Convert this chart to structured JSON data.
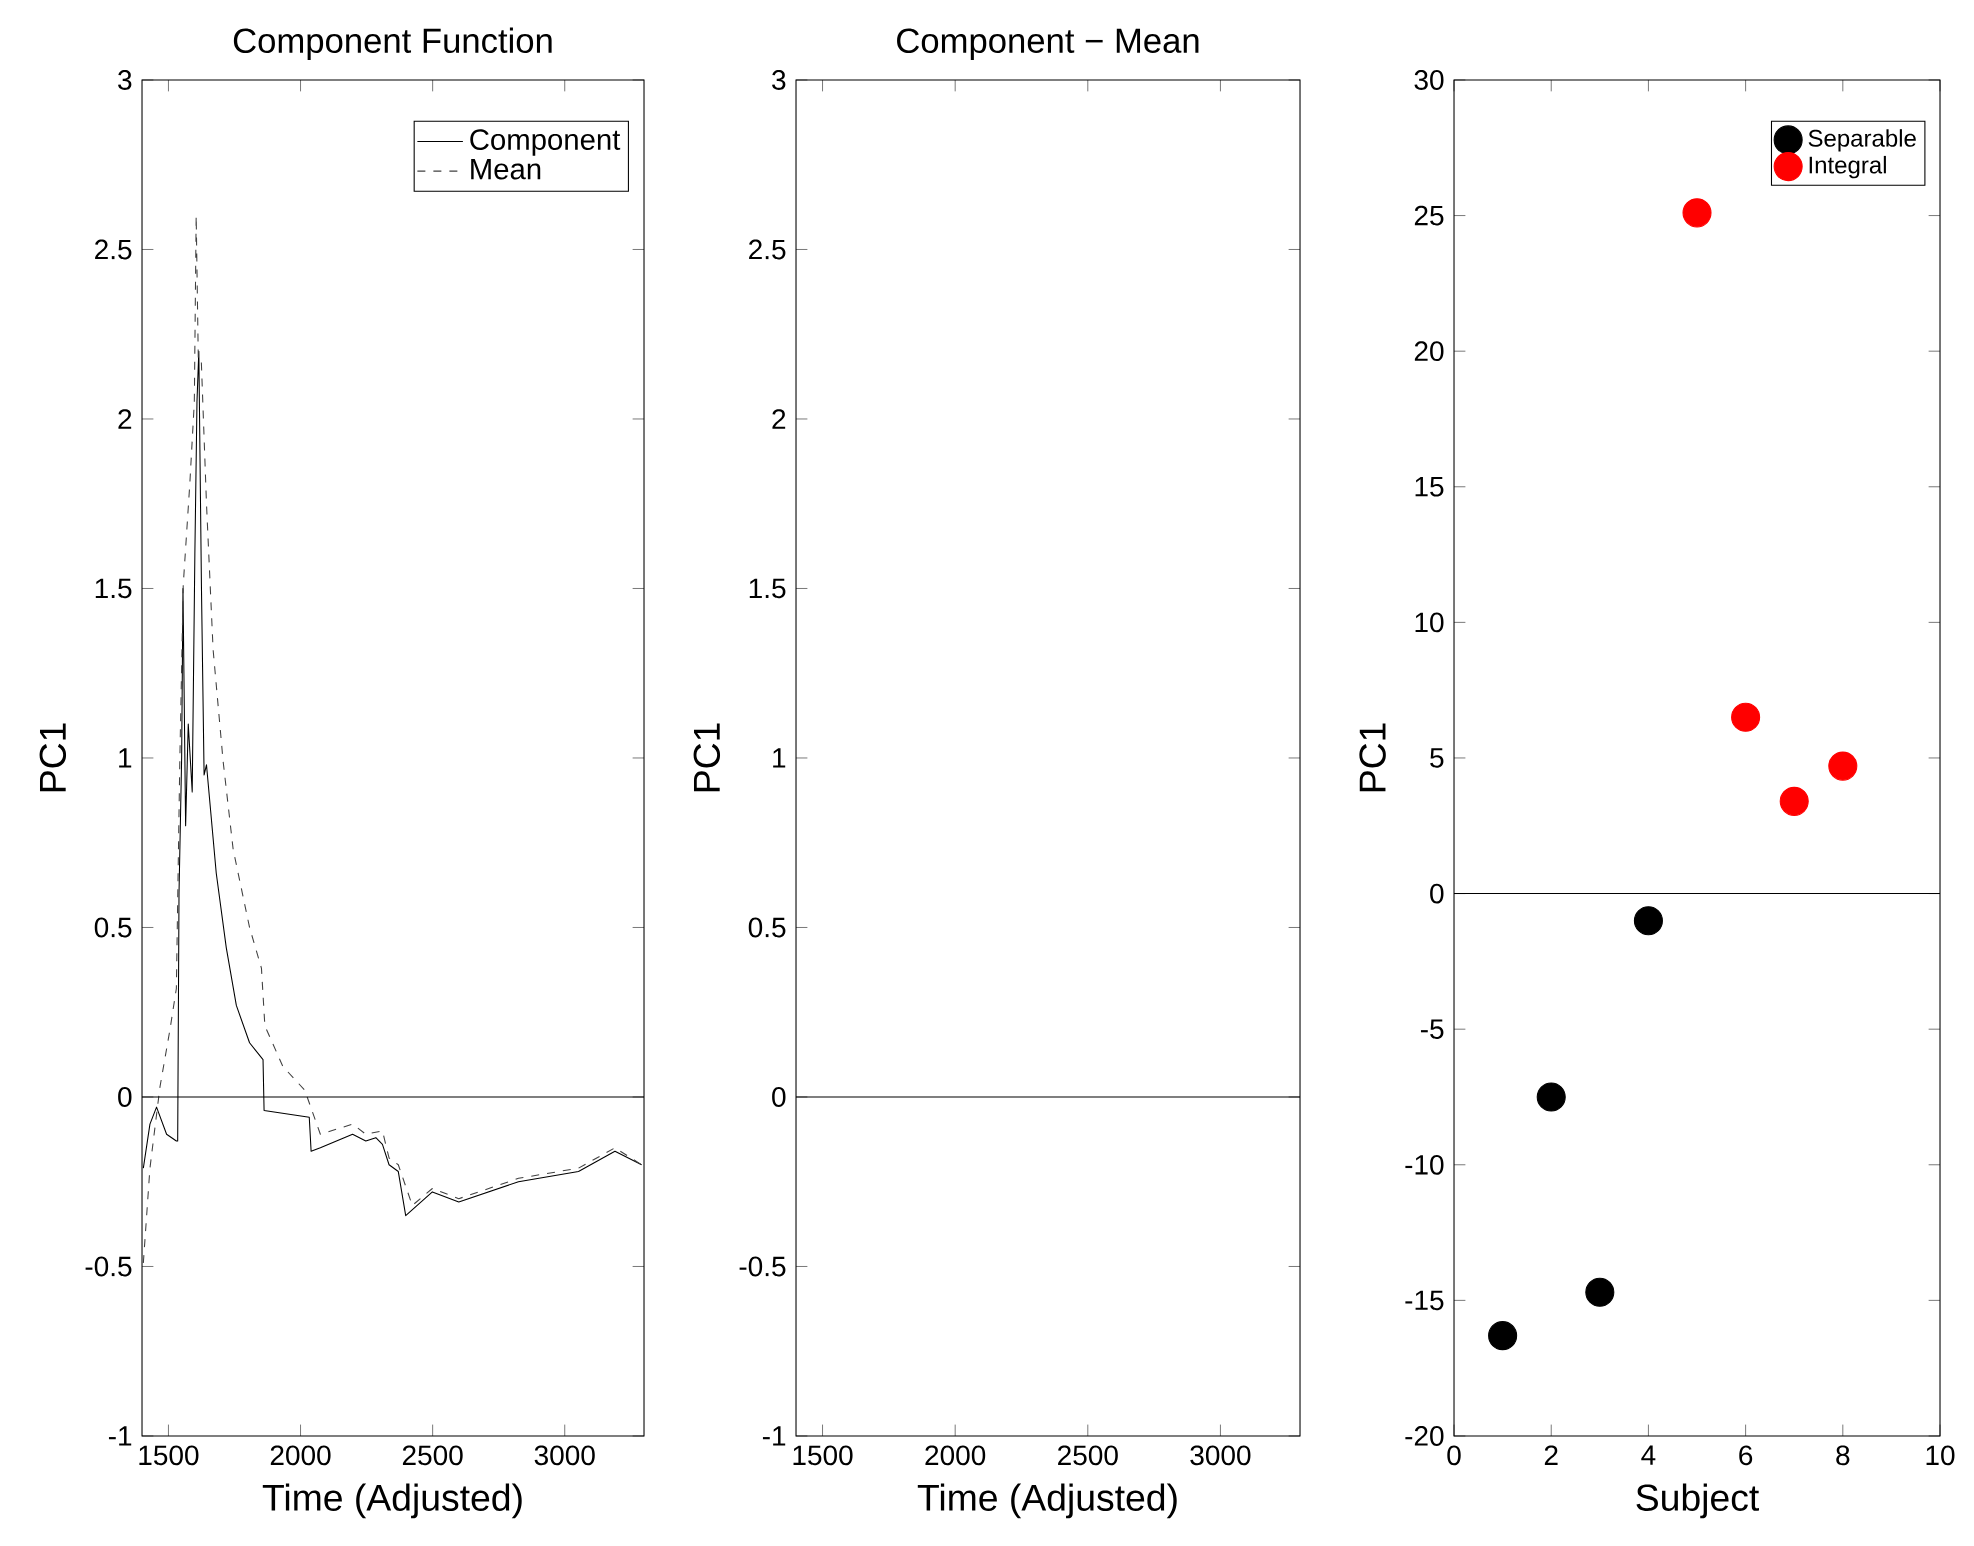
{
  "chart_data": [
    {
      "type": "line",
      "title": "Component Function",
      "xlabel": "Time (Adjusted)",
      "ylabel": "PC1",
      "xlim": [
        1400,
        3300
      ],
      "ylim": [
        -1,
        3
      ],
      "xticks": [
        1500,
        2000,
        2500,
        3000
      ],
      "yticks": [
        -1,
        -0.5,
        0,
        0.5,
        1,
        1.5,
        2,
        2.5,
        3
      ],
      "legend": "top right",
      "marker": "none",
      "series": [
        {
          "name": "Component",
          "color": "#000000",
          "line_style": "solid",
          "x": [
            1405,
            1430,
            1455,
            1493,
            1530,
            1535,
            1540,
            1550,
            1555,
            1565,
            1575,
            1590,
            1600,
            1608,
            1615,
            1625,
            1635,
            1644,
            1681,
            1719,
            1757,
            1807,
            1858,
            1862,
            2033,
            2040,
            2075,
            2197,
            2247,
            2285,
            2310,
            2335,
            2370,
            2398,
            2499,
            2599,
            2825,
            3052,
            3190,
            3291
          ],
          "values": [
            -0.21,
            -0.08,
            -0.03,
            -0.11,
            -0.13,
            -0.13,
            0.6,
            1.0,
            1.5,
            0.8,
            1.1,
            0.9,
            1.6,
            2.05,
            2.2,
            1.5,
            0.95,
            0.98,
            0.66,
            0.44,
            0.27,
            0.16,
            0.11,
            -0.04,
            -0.06,
            -0.16,
            -0.15,
            -0.11,
            -0.13,
            -0.12,
            -0.14,
            -0.2,
            -0.22,
            -0.35,
            -0.28,
            -0.31,
            -0.25,
            -0.22,
            -0.16,
            -0.2
          ]
        },
        {
          "name": "Mean",
          "color": "#404040",
          "line_style": "dashed",
          "x": [
            1405,
            1430,
            1468,
            1506,
            1530,
            1543,
            1556,
            1581,
            1598,
            1605,
            1613,
            1624,
            1644,
            1669,
            1707,
            1745,
            1807,
            1852,
            1865,
            1933,
            2016,
            2075,
            2197,
            2247,
            2310,
            2335,
            2370,
            2423,
            2499,
            2599,
            2825,
            3052,
            3190,
            3291
          ],
          "values": [
            -0.49,
            -0.21,
            0.03,
            0.2,
            0.32,
            0.99,
            1.51,
            1.81,
            2.05,
            2.6,
            2.18,
            2.18,
            1.75,
            1.32,
            0.99,
            0.73,
            0.5,
            0.38,
            0.21,
            0.09,
            0.02,
            -0.11,
            -0.08,
            -0.11,
            -0.1,
            -0.18,
            -0.2,
            -0.32,
            -0.27,
            -0.3,
            -0.24,
            -0.21,
            -0.15,
            -0.2
          ]
        }
      ],
      "ref_lines": [
        {
          "axis": "y",
          "value": 0,
          "color": "#000000"
        }
      ]
    },
    {
      "type": "line",
      "title": "Component − Mean",
      "xlabel": "Time (Adjusted)",
      "ylabel": "PC1",
      "xlim": [
        1400,
        3300
      ],
      "ylim": [
        -1,
        3
      ],
      "xticks": [
        1500,
        2000,
        2500,
        3000
      ],
      "yticks": [
        -1,
        -0.5,
        0,
        0.5,
        1,
        1.5,
        2,
        2.5,
        3
      ],
      "ref_lines": [
        {
          "axis": "y",
          "value": 0,
          "color": "#000000"
        }
      ]
    },
    {
      "type": "scatter",
      "xlabel": "Subject",
      "ylabel": "PC1",
      "xlim": [
        0,
        10
      ],
      "ylim": [
        -20,
        30
      ],
      "xticks": [
        0,
        2,
        4,
        6,
        8,
        10
      ],
      "yticks": [
        -20,
        -15,
        -10,
        -5,
        0,
        5,
        10,
        15,
        20,
        25,
        30
      ],
      "legend": "top right",
      "marker": "circle",
      "series": [
        {
          "name": "Separable",
          "color": "#000000",
          "x": [
            1,
            2,
            3,
            4
          ],
          "values": [
            -16.3,
            -7.5,
            -14.7,
            -1.0
          ]
        },
        {
          "name": "Integral",
          "color": "#ff0000",
          "x": [
            5,
            6,
            7,
            8
          ],
          "values": [
            25.1,
            6.5,
            3.4,
            4.7
          ]
        }
      ],
      "ref_lines": [
        {
          "axis": "y",
          "value": 0,
          "color": "#000000"
        }
      ]
    }
  ]
}
